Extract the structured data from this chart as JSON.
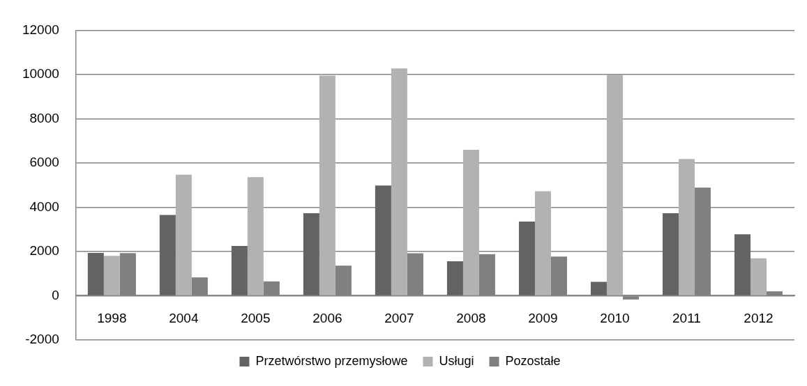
{
  "chart_data": {
    "type": "bar",
    "categories": [
      "1998",
      "2004",
      "2005",
      "2006",
      "2007",
      "2008",
      "2009",
      "2010",
      "2011",
      "2012"
    ],
    "series": [
      {
        "name": "Przetwórstwo przemysłowe",
        "color": "#636363",
        "values": [
          1940,
          3650,
          2250,
          3730,
          4980,
          1560,
          3350,
          630,
          3730,
          2780
        ]
      },
      {
        "name": "Usługi",
        "color": "#b2b2b2",
        "values": [
          1800,
          5470,
          5360,
          9950,
          10270,
          6600,
          4720,
          10000,
          6180,
          1690
        ]
      },
      {
        "name": "Pozostałe",
        "color": "#808080",
        "values": [
          1930,
          830,
          650,
          1360,
          1920,
          1880,
          1770,
          -170,
          4890,
          200
        ]
      }
    ],
    "ylim": [
      -2000,
      12000
    ],
    "yticks": [
      -2000,
      0,
      2000,
      4000,
      6000,
      8000,
      10000,
      12000
    ],
    "grid": "y",
    "legend": "bottom"
  }
}
